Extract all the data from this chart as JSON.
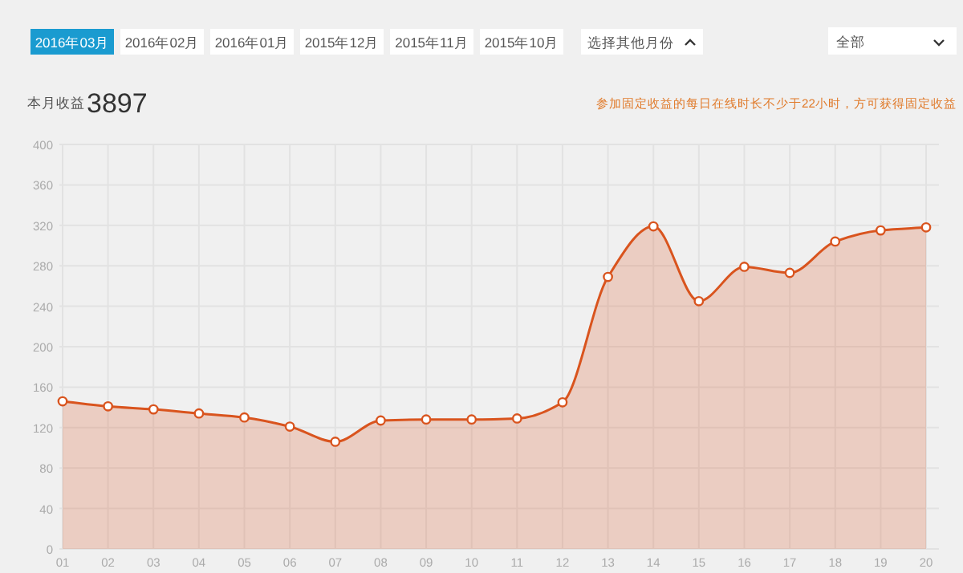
{
  "chart_data": {
    "type": "area",
    "title": "本月收益",
    "subtitle": "3897",
    "annotations": [
      "2016年03月",
      "2016年02月",
      "2016年01月",
      "2015年12月",
      "2015年11月",
      "2015年10月",
      "选择其他月份",
      "全部",
      "参加固定收益的每日在线时长不少于22小时，方可获得固定收益"
    ],
    "categories": [
      "01",
      "02",
      "03",
      "04",
      "05",
      "06",
      "07",
      "08",
      "09",
      "10",
      "11",
      "12",
      "13",
      "14",
      "15",
      "16",
      "17",
      "18",
      "19",
      "20"
    ],
    "series": [
      {
        "color": "#d9541e",
        "values": [
          146,
          141,
          138,
          134,
          130,
          121,
          106,
          127,
          128,
          128,
          129,
          145,
          269,
          319,
          245,
          279,
          273,
          304,
          315,
          318
        ]
      }
    ],
    "ylim": [
      0,
      400
    ],
    "yticks": [
      0,
      40,
      80,
      120,
      160,
      200,
      240,
      280,
      320,
      360,
      400
    ],
    "grid": true,
    "marker": "circle",
    "line_style": "solid"
  }
}
